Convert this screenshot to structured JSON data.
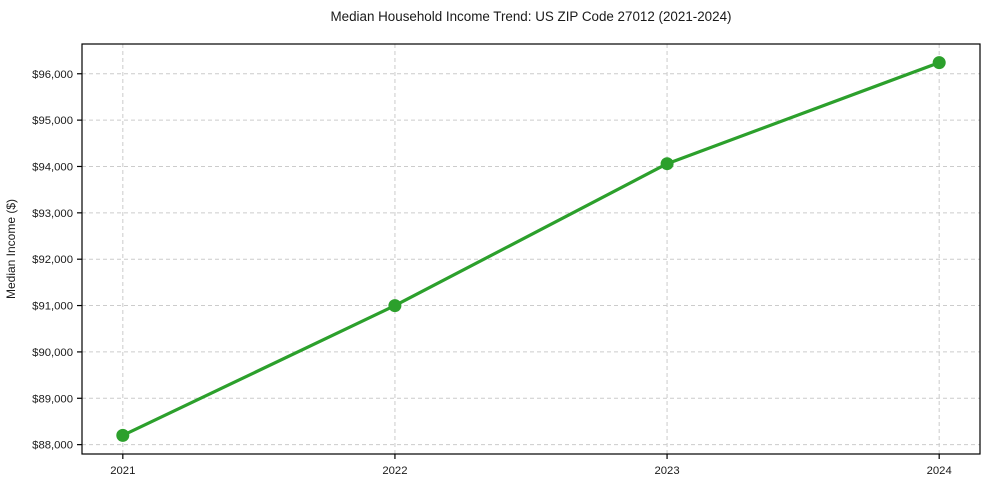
{
  "chart_data": {
    "type": "line",
    "title": "Median Household Income Trend: US ZIP Code 27012 (2021-2024)",
    "xlabel": "",
    "ylabel": "Median Income ($)",
    "x": [
      2021,
      2022,
      2023,
      2024
    ],
    "series": [
      {
        "name": "Median household income",
        "values": [
          88200,
          91000,
          94060,
          96240
        ]
      }
    ],
    "xtick_labels": [
      "2021",
      "2022",
      "2023",
      "2024"
    ],
    "ytick_values": [
      88000,
      89000,
      90000,
      91000,
      92000,
      93000,
      94000,
      95000,
      96000
    ],
    "ytick_labels": [
      "$88,000",
      "$89,000",
      "$90,000",
      "$91,000",
      "$92,000",
      "$93,000",
      "$94,000",
      "$95,000",
      "$96,000"
    ],
    "xlim": [
      2020.85,
      2024.15
    ],
    "ylim": [
      87798,
      96642
    ],
    "grid": true,
    "grid_style": "dashed",
    "legend": "none",
    "line_color": "#2ca02c",
    "marker": "circle",
    "grid_color": "#cccccc",
    "axis_color": "#000000",
    "text_color": "#1a1a1a",
    "background_color": "#ffffff"
  }
}
